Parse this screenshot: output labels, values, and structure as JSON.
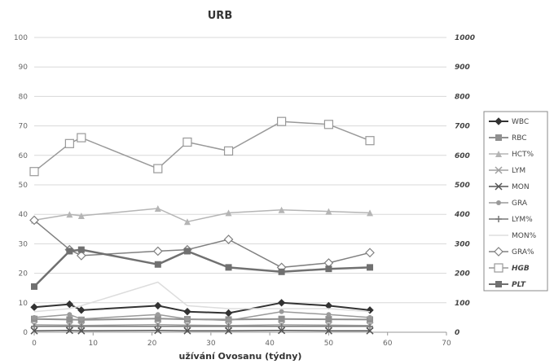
{
  "chart_data": {
    "type": "line",
    "title": "URB",
    "xlabel": "užívání Ovosanu (týdny)",
    "ylabel": "",
    "y2label": "",
    "xlim": [
      0,
      70
    ],
    "xticks": [
      "0",
      "10",
      "20",
      "30",
      "40",
      "50",
      "60",
      "70"
    ],
    "ylim": [
      0,
      100
    ],
    "yticks": [
      "0",
      "10",
      "20",
      "30",
      "40",
      "50",
      "60",
      "70",
      "80",
      "90",
      "100"
    ],
    "y2lim": [
      0,
      1000
    ],
    "y2ticks": [
      "0",
      "100",
      "200",
      "300",
      "400",
      "500",
      "600",
      "700",
      "800",
      "900",
      "1000"
    ],
    "grid": true,
    "legend_position": "right",
    "series": [
      {
        "name": "WBC",
        "axis": "left",
        "color": "#333333",
        "marker": "diamond",
        "width": 2,
        "x": [
          0,
          6,
          8,
          21,
          26,
          33,
          42,
          50,
          57
        ],
        "y": [
          8.5,
          9.5,
          7.5,
          9,
          7,
          6.5,
          10,
          9,
          7.5
        ]
      },
      {
        "name": "RBC",
        "axis": "left",
        "color": "#909090",
        "marker": "square",
        "width": 2,
        "x": [
          0,
          6,
          8,
          21,
          26,
          33,
          42,
          50,
          57
        ],
        "y": [
          4.5,
          4.3,
          4.2,
          4.6,
          4.4,
          4.3,
          4.5,
          4.4,
          4.3
        ]
      },
      {
        "name": "HCT%",
        "axis": "left",
        "color": "#b5b5b5",
        "marker": "triangle",
        "width": 1.5,
        "x": [
          0,
          6,
          8,
          21,
          26,
          33,
          42,
          50,
          57
        ],
        "y": [
          38,
          40,
          39.5,
          42,
          37.5,
          40.5,
          41.5,
          41,
          40.5
        ]
      },
      {
        "name": "LYM",
        "axis": "left",
        "color": "#a0a0a0",
        "marker": "x",
        "width": 1.5,
        "x": [
          0,
          6,
          8,
          21,
          26,
          33,
          42,
          50,
          57
        ],
        "y": [
          2.5,
          2.4,
          2.3,
          2.6,
          2.4,
          2.3,
          2.5,
          2.4,
          2.3
        ]
      },
      {
        "name": "MON",
        "axis": "left",
        "color": "#555555",
        "marker": "x",
        "width": 1.5,
        "x": [
          0,
          6,
          8,
          21,
          26,
          33,
          42,
          50,
          57
        ],
        "y": [
          0.5,
          0.6,
          0.5,
          0.6,
          0.5,
          0.5,
          0.6,
          0.5,
          0.5
        ]
      },
      {
        "name": "GRA",
        "axis": "left",
        "color": "#9a9a9a",
        "marker": "circle",
        "width": 1.5,
        "x": [
          0,
          6,
          8,
          21,
          26,
          33,
          42,
          50,
          57
        ],
        "y": [
          5,
          6,
          4.5,
          6,
          4.5,
          4,
          7,
          6,
          5
        ]
      },
      {
        "name": "LYM%",
        "axis": "left",
        "color": "#777777",
        "marker": "plus",
        "width": 1.5,
        "x": [
          0,
          6,
          8,
          21,
          26,
          33,
          42,
          50,
          57
        ],
        "y": [
          2,
          2,
          2,
          2,
          2,
          2,
          2,
          2,
          2
        ]
      },
      {
        "name": "MON%",
        "axis": "left",
        "color": "#dddddd",
        "marker": "none",
        "width": 1.5,
        "x": [
          0,
          6,
          8,
          21,
          26,
          33,
          42,
          50,
          57
        ],
        "y": [
          7,
          8,
          9,
          17,
          9,
          8,
          8,
          8,
          7
        ]
      },
      {
        "name": "GRA%",
        "axis": "left",
        "color": "#808080",
        "marker": "diamond-open",
        "width": 1.5,
        "x": [
          0,
          6,
          8,
          21,
          26,
          33,
          42,
          50,
          57
        ],
        "y": [
          38,
          28,
          26,
          27.5,
          28,
          31.5,
          22,
          23.5,
          27
        ]
      },
      {
        "name": "HGB",
        "axis": "right",
        "color": "#999999",
        "marker": "square-open",
        "width": 1.5,
        "x": [
          0,
          6,
          8,
          21,
          26,
          33,
          42,
          50,
          57
        ],
        "y": [
          545,
          640,
          660,
          555,
          645,
          615,
          715,
          705,
          650
        ]
      },
      {
        "name": "PLT",
        "axis": "right",
        "color": "#707070",
        "marker": "square",
        "width": 2.5,
        "x": [
          0,
          6,
          8,
          21,
          26,
          33,
          42,
          50,
          57
        ],
        "y": [
          155,
          275,
          280,
          230,
          275,
          220,
          205,
          215,
          220
        ]
      }
    ]
  }
}
